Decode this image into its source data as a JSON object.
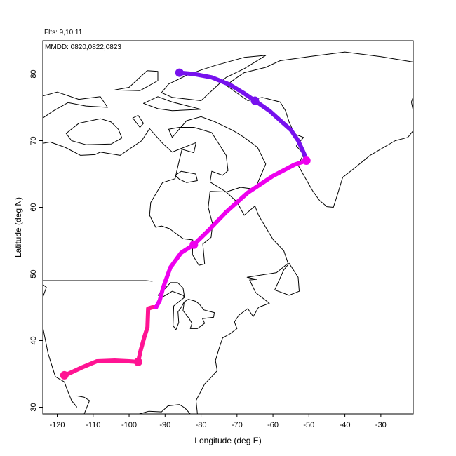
{
  "header": {
    "flights_text": "Flts: 9,10,11",
    "dates_text": "MMDD: 0820,0822,0823"
  },
  "axes": {
    "xlabel": "Longitude (deg E)",
    "ylabel": "Latitude (deg N)",
    "xlim": [
      -124,
      -21
    ],
    "ylim": [
      29,
      85
    ],
    "xticks": [
      -120,
      -110,
      -100,
      -90,
      -80,
      -70,
      -60,
      -50,
      -40,
      -30
    ],
    "yticks": [
      30,
      40,
      50,
      60,
      70,
      80
    ],
    "grid": false
  },
  "chart_data": {
    "type": "line",
    "x_unit": "deg E",
    "y_unit": "deg N",
    "series": [
      {
        "color": "#ff1493",
        "points": [
          [
            -118,
            34.8
          ],
          [
            -117,
            35.0
          ],
          [
            -113,
            36.0
          ],
          [
            -109,
            36.9
          ],
          [
            -104,
            37.0
          ],
          [
            -100,
            36.9
          ],
          [
            -97.5,
            36.8
          ],
          [
            -96.8,
            38.5
          ],
          [
            -95.8,
            40.5
          ],
          [
            -94.9,
            42.0
          ],
          [
            -94.7,
            44.8
          ],
          [
            -93.5,
            45.0
          ],
          [
            -92.5,
            45.0
          ]
        ]
      },
      {
        "color": "#ee00ee",
        "points": [
          [
            -92.5,
            45.0
          ],
          [
            -91.5,
            46.0
          ],
          [
            -90.5,
            48.0
          ],
          [
            -88.5,
            51.0
          ],
          [
            -85.5,
            53.2
          ],
          [
            -82,
            54.4
          ],
          [
            -78,
            56.5
          ],
          [
            -73,
            59.3
          ],
          [
            -67,
            62.2
          ],
          [
            -60,
            64.7
          ],
          [
            -54,
            66.4
          ],
          [
            -50.7,
            67.0
          ]
        ]
      },
      {
        "color": "#7711ee",
        "points": [
          [
            -50.7,
            67.0
          ],
          [
            -51.3,
            68.0
          ],
          [
            -53,
            70.0
          ],
          [
            -55,
            71.6
          ],
          [
            -57.5,
            72.8
          ],
          [
            -61,
            74.5
          ],
          [
            -64.5,
            75.8
          ],
          [
            -68,
            77.1
          ],
          [
            -72,
            78.4
          ],
          [
            -77,
            79.5
          ],
          [
            -82,
            80.0
          ],
          [
            -86,
            80.2
          ]
        ]
      }
    ],
    "markers": [
      {
        "x": -118,
        "y": 34.8,
        "color": "#ff1493"
      },
      {
        "x": -97.5,
        "y": 36.8,
        "color": "#ff1493"
      },
      {
        "x": -82,
        "y": 54.4,
        "color": "#ee00ee"
      },
      {
        "x": -50.7,
        "y": 67.0,
        "color": "#ee00ee"
      },
      {
        "x": -65,
        "y": 76.0,
        "color": "#7711ee"
      },
      {
        "x": -86,
        "y": 80.2,
        "color": "#7711ee"
      }
    ]
  },
  "coastlines": [
    [
      [
        -124,
        48.4
      ],
      [
        -123,
        48.0
      ],
      [
        -124,
        46.5
      ],
      [
        -124,
        42.0
      ],
      [
        -122.5,
        38.0
      ],
      [
        -120.5,
        34.6
      ],
      [
        -118,
        33.8
      ],
      [
        -117.2,
        32.6
      ],
      [
        -116,
        31.0
      ],
      [
        -114.5,
        30.0
      ]
    ],
    [
      [
        -112.5,
        29.0
      ],
      [
        -111,
        31.0
      ],
      [
        -112.5,
        31.5
      ],
      [
        -114.5,
        31.7
      ]
    ],
    [
      [
        -97.2,
        29.0
      ],
      [
        -94.5,
        29.4
      ],
      [
        -91.0,
        29.3
      ],
      [
        -89.2,
        30.2
      ],
      [
        -86.0,
        30.4
      ],
      [
        -84.5,
        29.9
      ],
      [
        -83.0,
        29.0
      ]
    ],
    [
      [
        -81.0,
        29.0
      ],
      [
        -81.4,
        31.0
      ],
      [
        -79.0,
        33.5
      ],
      [
        -77.0,
        34.6
      ],
      [
        -75.5,
        35.5
      ],
      [
        -76.0,
        37.0
      ],
      [
        -75.0,
        38.8
      ],
      [
        -74.0,
        40.4
      ],
      [
        -72.0,
        41.0
      ],
      [
        -70.0,
        41.8
      ],
      [
        -70.7,
        42.8
      ],
      [
        -69.5,
        43.8
      ],
      [
        -67.0,
        44.8
      ],
      [
        -65.5,
        43.6
      ],
      [
        -64.0,
        45.0
      ],
      [
        -61.0,
        45.6
      ],
      [
        -64.8,
        47.2
      ],
      [
        -66.5,
        49.1
      ],
      [
        -64.5,
        49.2
      ],
      [
        -67.2,
        49.5
      ],
      [
        -59.0,
        50.2
      ],
      [
        -55.8,
        51.6
      ],
      [
        -57.0,
        53.5
      ],
      [
        -60.0,
        55.2
      ],
      [
        -61.8,
        56.8
      ],
      [
        -64.0,
        58.8
      ],
      [
        -65.0,
        60.2
      ]
    ],
    [
      [
        -59.5,
        47.6
      ],
      [
        -55.5,
        46.8
      ],
      [
        -52.7,
        47.4
      ],
      [
        -53.0,
        49.5
      ],
      [
        -55.5,
        51.6
      ],
      [
        -57.0,
        50.6
      ],
      [
        -59.5,
        47.6
      ]
    ],
    [
      [
        -65.0,
        60.2
      ],
      [
        -68.0,
        58.8
      ],
      [
        -70.0,
        60.8
      ],
      [
        -73.0,
        62.3
      ],
      [
        -77.5,
        62.4
      ],
      [
        -78.0,
        60.0
      ],
      [
        -76.8,
        57.5
      ],
      [
        -77.2,
        55.5
      ],
      [
        -79.5,
        54.5
      ],
      [
        -79.0,
        51.5
      ],
      [
        -80.6,
        51.3
      ],
      [
        -82.4,
        52.9
      ],
      [
        -82.3,
        55.1
      ],
      [
        -85.0,
        55.3
      ],
      [
        -88.8,
        56.8
      ],
      [
        -91.0,
        57.2
      ],
      [
        -92.6,
        57.0
      ],
      [
        -94.3,
        58.8
      ],
      [
        -94.0,
        60.7
      ],
      [
        -92.5,
        62.1
      ],
      [
        -90.7,
        63.7
      ],
      [
        -87.2,
        64.3
      ],
      [
        -86.5,
        66.0
      ],
      [
        -85.3,
        68.7
      ],
      [
        -82.0,
        68.2
      ],
      [
        -81.4,
        69.7
      ],
      [
        -88.0,
        68.3
      ],
      [
        -90.5,
        69.5
      ],
      [
        -94.3,
        71.8
      ],
      [
        -96.5,
        70.0
      ],
      [
        -102.5,
        67.8
      ],
      [
        -108.0,
        68.3
      ],
      [
        -109.5,
        67.9
      ],
      [
        -113.5,
        67.8
      ],
      [
        -117.8,
        69.0
      ],
      [
        -122.0,
        69.8
      ],
      [
        -124.0,
        69.6
      ]
    ],
    [
      [
        -73.0,
        62.3
      ],
      [
        -69.0,
        63.0
      ],
      [
        -65.0,
        62.7
      ],
      [
        -62.0,
        66.5
      ],
      [
        -64.3,
        69.0
      ],
      [
        -68.0,
        70.5
      ],
      [
        -71.0,
        71.5
      ],
      [
        -76.0,
        72.8
      ],
      [
        -80.0,
        73.6
      ],
      [
        -84.0,
        73.0
      ],
      [
        -88.0,
        70.5
      ],
      [
        -89.0,
        71.7
      ],
      [
        -86.0,
        72.0
      ],
      [
        -82.0,
        72.0
      ],
      [
        -77.0,
        71.2
      ],
      [
        -73.0,
        67.8
      ],
      [
        -72.5,
        65.5
      ],
      [
        -74.0,
        64.8
      ],
      [
        -77.0,
        65.4
      ],
      [
        -77.5,
        63.8
      ],
      [
        -73.0,
        62.3
      ]
    ],
    [
      [
        -86.0,
        64.2
      ],
      [
        -84.0,
        63.7
      ],
      [
        -81.0,
        64.0
      ],
      [
        -81.5,
        65.0
      ],
      [
        -85.5,
        65.4
      ],
      [
        -87.2,
        64.8
      ],
      [
        -86.0,
        64.2
      ]
    ],
    [
      [
        -80.0,
        76.0
      ],
      [
        -88.0,
        76.5
      ],
      [
        -91.0,
        77.2
      ],
      [
        -89.0,
        78.5
      ],
      [
        -84.0,
        79.8
      ],
      [
        -80.0,
        80.6
      ],
      [
        -76.0,
        81.3
      ],
      [
        -68.0,
        82.5
      ],
      [
        -62.0,
        82.8
      ],
      [
        -68.0,
        80.8
      ],
      [
        -73.0,
        79.5
      ],
      [
        -78.0,
        77.0
      ],
      [
        -80.0,
        76.0
      ]
    ],
    [
      [
        -88.0,
        74.5
      ],
      [
        -92.0,
        74.8
      ],
      [
        -96.0,
        75.6
      ],
      [
        -92.0,
        76.6
      ],
      [
        -88.0,
        75.8
      ],
      [
        -80.0,
        74.7
      ],
      [
        -88.0,
        74.5
      ]
    ],
    [
      [
        -105.0,
        72.8
      ],
      [
        -108.0,
        73.3
      ],
      [
        -114.0,
        72.6
      ],
      [
        -117.5,
        71.1
      ],
      [
        -116.0,
        70.0
      ],
      [
        -112.0,
        69.4
      ],
      [
        -105.0,
        69.5
      ],
      [
        -102.0,
        70.4
      ],
      [
        -103.0,
        71.7
      ],
      [
        -105.0,
        72.8
      ]
    ],
    [
      [
        -97.0,
        72.0
      ],
      [
        -99.0,
        73.4
      ],
      [
        -97.5,
        73.8
      ],
      [
        -96.0,
        72.6
      ],
      [
        -97.0,
        72.0
      ]
    ],
    [
      [
        -124.0,
        73.4
      ],
      [
        -121.0,
        74.5
      ],
      [
        -117.0,
        75.7
      ],
      [
        -112.0,
        75.2
      ],
      [
        -106.0,
        75.0
      ],
      [
        -108.0,
        76.6
      ],
      [
        -114.0,
        76.2
      ],
      [
        -120.0,
        77.3
      ],
      [
        -124.0,
        76.7
      ]
    ],
    [
      [
        -104.0,
        77.6
      ],
      [
        -100.0,
        78.0
      ],
      [
        -98.0,
        79.0
      ],
      [
        -95.0,
        80.5
      ],
      [
        -92.0,
        80.4
      ],
      [
        -92.0,
        79.0
      ],
      [
        -97.0,
        77.5
      ],
      [
        -104.0,
        77.6
      ]
    ],
    [
      [
        -73.0,
        78.3
      ],
      [
        -67.0,
        76.0
      ],
      [
        -63.0,
        76.5
      ],
      [
        -58.0,
        75.8
      ],
      [
        -56.5,
        74.5
      ],
      [
        -55.5,
        72.8
      ],
      [
        -54.0,
        71.0
      ],
      [
        -51.5,
        70.5
      ],
      [
        -53.5,
        69.2
      ],
      [
        -51.5,
        68.0
      ],
      [
        -53.0,
        66.3
      ],
      [
        -51.0,
        64.4
      ],
      [
        -49.0,
        62.5
      ],
      [
        -47.0,
        61.0
      ],
      [
        -45.0,
        60.1
      ],
      [
        -43.2,
        60.0
      ],
      [
        -42.0,
        62.0
      ],
      [
        -40.6,
        64.5
      ],
      [
        -37.5,
        65.8
      ],
      [
        -33.0,
        67.8
      ],
      [
        -26.0,
        70.0
      ],
      [
        -22.5,
        70.5
      ],
      [
        -21.0,
        71.5
      ]
    ],
    [
      [
        -21.0,
        74.5
      ],
      [
        -21.5,
        75.8
      ],
      [
        -20.0,
        78.0
      ]
    ],
    [
      [
        -21.0,
        81.8
      ],
      [
        -30.0,
        82.6
      ],
      [
        -40.0,
        83.3
      ],
      [
        -50.0,
        82.6
      ],
      [
        -58.0,
        82.0
      ],
      [
        -62.0,
        81.0
      ],
      [
        -68.0,
        80.2
      ],
      [
        -70.5,
        79.3
      ],
      [
        -73.0,
        78.3
      ]
    ],
    [
      [
        -93.5,
        48.9
      ],
      [
        -95.2,
        49.0
      ]
    ],
    [
      [
        -124,
        49.0
      ],
      [
        -95.2,
        49.0
      ]
    ],
    [
      [
        -83.5,
        46.2
      ],
      [
        -84.7,
        45.8
      ],
      [
        -85.0,
        44.5
      ],
      [
        -83.3,
        43.3
      ],
      [
        -82.5,
        42.6
      ],
      [
        -83.0,
        41.8
      ],
      [
        -81.0,
        41.8
      ],
      [
        -79.0,
        42.6
      ],
      [
        -79.6,
        43.3
      ],
      [
        -76.5,
        43.5
      ],
      [
        -76.3,
        44.2
      ],
      [
        -79.2,
        44.6
      ],
      [
        -80.5,
        45.5
      ],
      [
        -81.5,
        45.9
      ],
      [
        -83.5,
        46.2
      ]
    ],
    [
      [
        -92.0,
        46.8
      ],
      [
        -90.5,
        46.6
      ],
      [
        -88.0,
        47.4
      ],
      [
        -85.0,
        46.8
      ],
      [
        -84.6,
        46.5
      ],
      [
        -86.0,
        45.9
      ],
      [
        -87.6,
        45.2
      ],
      [
        -87.8,
        42.3
      ],
      [
        -87.0,
        41.6
      ],
      [
        -86.2,
        42.7
      ],
      [
        -86.4,
        44.3
      ],
      [
        -85.5,
        45.0
      ],
      [
        -84.7,
        45.8
      ]
    ],
    [
      [
        -92.0,
        46.8
      ],
      [
        -90.0,
        47.8
      ],
      [
        -88.5,
        48.7
      ],
      [
        -86.5,
        48.7
      ],
      [
        -85.0,
        47.9
      ],
      [
        -84.6,
        46.5
      ]
    ]
  ],
  "style": {
    "frame_color": "#000000",
    "background": "#ffffff"
  }
}
